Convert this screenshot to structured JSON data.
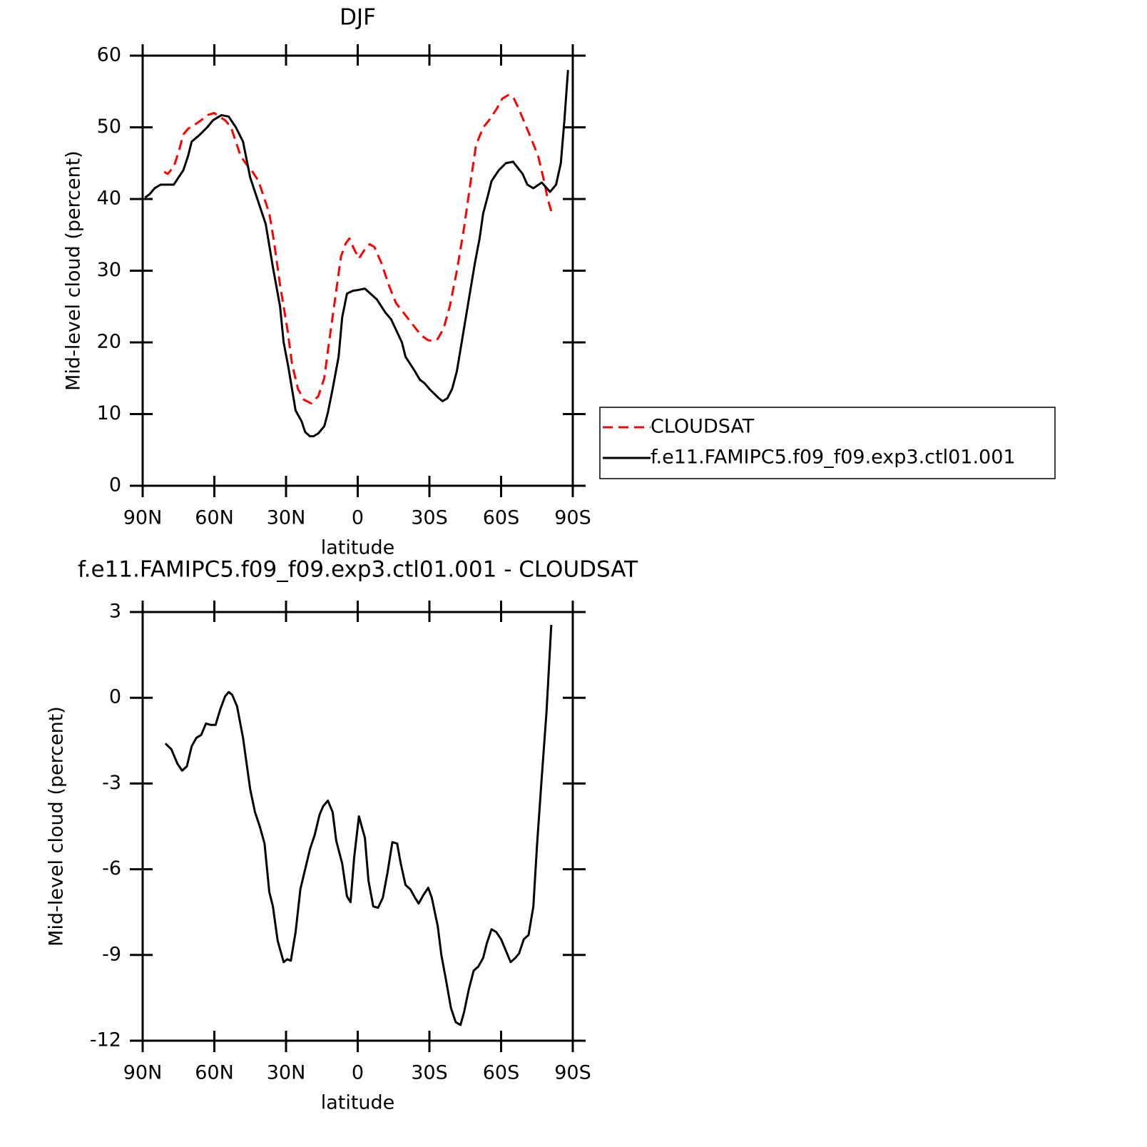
{
  "chart_data": [
    {
      "type": "line",
      "title": "DJF",
      "xlabel": "latitude",
      "ylabel": "Mid-level cloud (percent)",
      "xlim": [
        90,
        -90
      ],
      "xticks": [
        {
          "value": 90,
          "label": "90N"
        },
        {
          "value": 60,
          "label": "60N"
        },
        {
          "value": 30,
          "label": "30N"
        },
        0,
        {
          "value": -30,
          "label": "30S"
        },
        {
          "value": -60,
          "label": "60S"
        },
        {
          "value": -90,
          "label": "90S"
        }
      ],
      "ylim": [
        0,
        60
      ],
      "yticks": [
        0,
        10,
        20,
        30,
        40,
        50,
        60
      ],
      "legend": "outside-right",
      "series": [
        {
          "name": "CLOUDSAT",
          "color": "#ff0000",
          "style": "dashed",
          "x": [
            81,
            79.5,
            77,
            75,
            73,
            71,
            68.5,
            65.5,
            63,
            60,
            58,
            55.5,
            53,
            51,
            49,
            46.5,
            44,
            41.5,
            39.5,
            37,
            35,
            32.5,
            29.5,
            27.5,
            25,
            22.5,
            19.5,
            16.5,
            14,
            12,
            9.5,
            7,
            5,
            3.5,
            1.5,
            -0.5,
            -3,
            -5,
            -7,
            -10,
            -13,
            -16,
            -19.5,
            -23,
            -26.5,
            -29.5,
            -32,
            -33.5,
            -36,
            -38.5,
            -41.5,
            -44.5,
            -47.5,
            -49.5,
            -52.5,
            -55,
            -58,
            -60.5,
            -63,
            -65,
            -67.5,
            -70,
            -72.5,
            -75.5,
            -78,
            -79.5,
            -81
          ],
          "values": [
            43.8,
            43.5,
            44.5,
            46.5,
            49,
            49.8,
            50.3,
            51,
            51.7,
            52,
            51.5,
            51,
            50,
            48,
            46,
            44.8,
            43.8,
            42.5,
            40.5,
            38,
            34,
            28,
            22,
            17,
            13.5,
            12,
            11.5,
            12.5,
            15,
            20,
            26,
            32,
            33.8,
            34.5,
            33,
            31.7,
            33,
            33.7,
            33.3,
            31,
            28,
            25.5,
            24,
            22.5,
            21,
            20.3,
            20.2,
            20.5,
            22,
            25,
            30,
            36,
            43,
            47.5,
            50,
            51,
            52.5,
            54,
            54.5,
            54.3,
            52.5,
            50.5,
            48.5,
            46,
            42.5,
            40,
            38.3
          ]
        },
        {
          "name": "f.e11.FAMIPC5.f09_f09.exp3.ctl01.001",
          "color": "#000000",
          "style": "solid",
          "x": [
            89,
            87,
            85,
            82.5,
            79.5,
            77,
            75,
            73,
            71,
            69.5,
            66,
            63,
            60.5,
            57,
            54,
            51,
            48,
            46.5,
            45,
            42,
            38.5,
            35.5,
            32.5,
            31,
            29,
            27.5,
            26,
            23.5,
            22,
            20,
            18.5,
            16.5,
            14,
            12.5,
            10.5,
            8,
            6.5,
            4.5,
            2,
            0,
            -3,
            -8,
            -11.5,
            -14,
            -18.5,
            -20,
            -23.5,
            -26,
            -28,
            -30,
            -34,
            -35.5,
            -37.5,
            -39.5,
            -41.5,
            -44.5,
            -47,
            -49,
            -51,
            -52.5,
            -54.5,
            -56,
            -59,
            -62,
            -65,
            -69,
            -71,
            -73.5,
            -77,
            -80.5,
            -83,
            -85,
            -86.5,
            -88
          ],
          "values": [
            40.2,
            40.7,
            41.5,
            42,
            42,
            42,
            43,
            44,
            46,
            48,
            49,
            50,
            51,
            51.7,
            51.5,
            50,
            48,
            45.5,
            43,
            40,
            36.5,
            30.5,
            25,
            20,
            16.5,
            13.5,
            10.5,
            9,
            7.5,
            6.9,
            6.9,
            7.3,
            8.3,
            10.2,
            13.5,
            18,
            23.5,
            26.8,
            27.2,
            27.3,
            27.5,
            26,
            24.2,
            23.2,
            20,
            18,
            16.2,
            14.8,
            14.3,
            13.5,
            12.2,
            11.8,
            12.2,
            13.5,
            16,
            22,
            27,
            31,
            34.5,
            38,
            40.5,
            42.5,
            44,
            45,
            45.2,
            43.5,
            42,
            41.5,
            42.3,
            41,
            42,
            45,
            51,
            58
          ]
        }
      ]
    },
    {
      "type": "line",
      "title": "f.e11.FAMIPC5.f09_f09.exp3.ctl01.001 - CLOUDSAT",
      "xlabel": "latitude",
      "ylabel": "Mid-level cloud (percent)",
      "xlim": [
        90,
        -90
      ],
      "xticks": [
        {
          "value": 90,
          "label": "90N"
        },
        {
          "value": 60,
          "label": "60N"
        },
        {
          "value": 30,
          "label": "30N"
        },
        0,
        {
          "value": -30,
          "label": "30S"
        },
        {
          "value": -60,
          "label": "60S"
        },
        {
          "value": -90,
          "label": "90S"
        }
      ],
      "ylim": [
        -12,
        3
      ],
      "yticks": [
        -12,
        -9,
        -6,
        -3,
        0,
        3
      ],
      "series": [
        {
          "color": "#000000",
          "style": "solid",
          "x": [
            80.5,
            78,
            75.5,
            73.5,
            71.5,
            69.5,
            67.5,
            65.5,
            63.5,
            61.5,
            59.5,
            57.5,
            55.5,
            54,
            52.5,
            50.5,
            48,
            45,
            43,
            41,
            39,
            37,
            35.5,
            33.5,
            31,
            29.5,
            28,
            26,
            24,
            22,
            20,
            18,
            16,
            14.5,
            12.5,
            10.5,
            9,
            6.5,
            4.5,
            3,
            1.5,
            -0.5,
            -3,
            -4.5,
            -6.5,
            -8.5,
            -10.5,
            -12.5,
            -14.5,
            -16.5,
            -18,
            -20,
            -22,
            -24,
            -25.5,
            -27.5,
            -29.5,
            -31,
            -33.5,
            -35,
            -37,
            -39,
            -41,
            -43,
            -44.5,
            -46.5,
            -48.5,
            -50.5,
            -52.5,
            -54,
            -56,
            -58,
            -60,
            -62,
            -64,
            -66,
            -67.5,
            -69.5,
            -71.5,
            -73.5,
            -75,
            -77,
            -79,
            -81
          ],
          "values": [
            -1.6,
            -1.8,
            -2.3,
            -2.55,
            -2.4,
            -1.7,
            -1.4,
            -1.3,
            -0.9,
            -0.95,
            -0.95,
            -0.4,
            0.05,
            0.2,
            0.1,
            -0.3,
            -1.4,
            -3.2,
            -4,
            -4.5,
            -5.1,
            -6.8,
            -7.3,
            -8.5,
            -9.25,
            -9.15,
            -9.2,
            -8.2,
            -6.7,
            -6,
            -5.3,
            -4.8,
            -4.1,
            -3.8,
            -3.6,
            -4,
            -5,
            -5.8,
            -6.95,
            -7.15,
            -5.6,
            -4.15,
            -4.9,
            -6.4,
            -7.3,
            -7.35,
            -7,
            -6.1,
            -5.05,
            -5.1,
            -5.8,
            -6.55,
            -6.7,
            -7,
            -7.2,
            -6.9,
            -6.65,
            -7,
            -8,
            -9,
            -9.9,
            -10.85,
            -11.35,
            -11.45,
            -11,
            -10.2,
            -9.55,
            -9.4,
            -9.1,
            -8.6,
            -8.1,
            -8.2,
            -8.45,
            -8.85,
            -9.25,
            -9.1,
            -8.95,
            -8.45,
            -8.3,
            -7.3,
            -5.2,
            -2.8,
            -0.5,
            2.55
          ]
        }
      ]
    }
  ]
}
